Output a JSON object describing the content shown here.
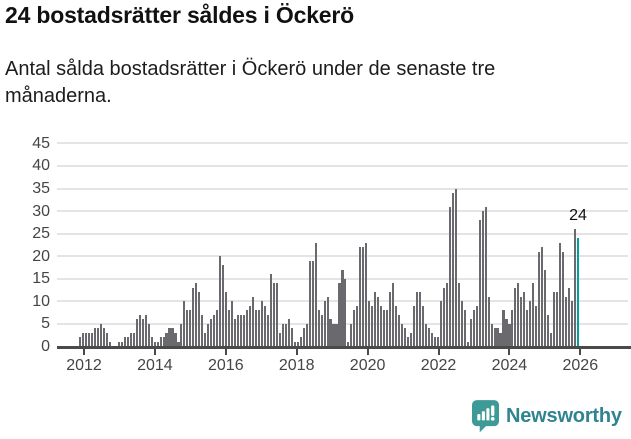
{
  "header": {
    "title": "24 bostadsrätter såldes i Öckerö",
    "subtitle": "Antal sålda bostadsrätter i Öckerö under de senaste tre månaderna."
  },
  "chart_data": {
    "type": "bar",
    "title": "24 bostadsrätter såldes i Öckerö",
    "subtitle": "Antal sålda bostadsrätter i Öckerö under de senaste tre månaderna.",
    "xlabel": "",
    "ylabel": "",
    "ylim": [
      0,
      45
    ],
    "y_ticks": [
      0,
      5,
      10,
      15,
      20,
      25,
      30,
      35,
      40,
      45
    ],
    "x_tick_labels": [
      "2012",
      "2014",
      "2016",
      "2018",
      "2020",
      "2022",
      "2024",
      "2026"
    ],
    "grid": "horizontal",
    "start_year": 2012,
    "frequency": "monthly",
    "values": [
      2,
      3,
      3,
      3,
      3,
      4,
      4,
      5,
      4,
      3,
      1,
      0,
      0,
      1,
      1,
      2,
      2,
      3,
      3,
      6,
      7,
      6,
      7,
      5,
      2,
      1,
      1,
      2,
      2,
      3,
      4,
      4,
      3,
      1,
      5,
      10,
      8,
      8,
      13,
      14,
      12,
      7,
      3,
      5,
      6,
      7,
      8,
      20,
      18,
      12,
      8,
      10,
      6,
      7,
      7,
      7,
      8,
      9,
      11,
      8,
      8,
      10,
      9,
      7,
      16,
      14,
      14,
      3,
      5,
      5,
      6,
      4,
      1,
      1,
      2,
      4,
      5,
      19,
      19,
      23,
      8,
      7,
      10,
      11,
      6,
      5,
      5,
      14,
      17,
      15,
      1,
      5,
      8,
      9,
      22,
      22,
      23,
      10,
      9,
      12,
      11,
      9,
      8,
      8,
      12,
      14,
      9,
      7,
      5,
      4,
      2,
      3,
      9,
      12,
      12,
      9,
      5,
      4,
      3,
      2,
      2,
      10,
      13,
      14,
      31,
      34,
      35,
      14,
      10,
      8,
      1,
      6,
      8,
      9,
      28,
      30,
      31,
      11,
      5,
      4,
      4,
      3,
      8,
      6,
      5,
      8,
      13,
      14,
      11,
      12,
      8,
      10,
      14,
      9,
      21,
      22,
      17,
      7,
      3,
      12,
      12,
      23,
      21,
      11,
      13,
      10,
      26,
      24
    ],
    "highlight": {
      "index_from_end": 0,
      "value": 24,
      "label": "24"
    },
    "colors": {
      "bar": "#6a696e",
      "highlight": "#00a19c",
      "axis": "#4a4a4a",
      "grid": "#e4e4e4",
      "tick_label": "#454545",
      "value_label": "#111111"
    },
    "legend": "none"
  },
  "footer": {
    "brand_name": "Newsworthy",
    "brand_text_color": "#30848f",
    "brand_icon_color": "#3e9a97"
  }
}
